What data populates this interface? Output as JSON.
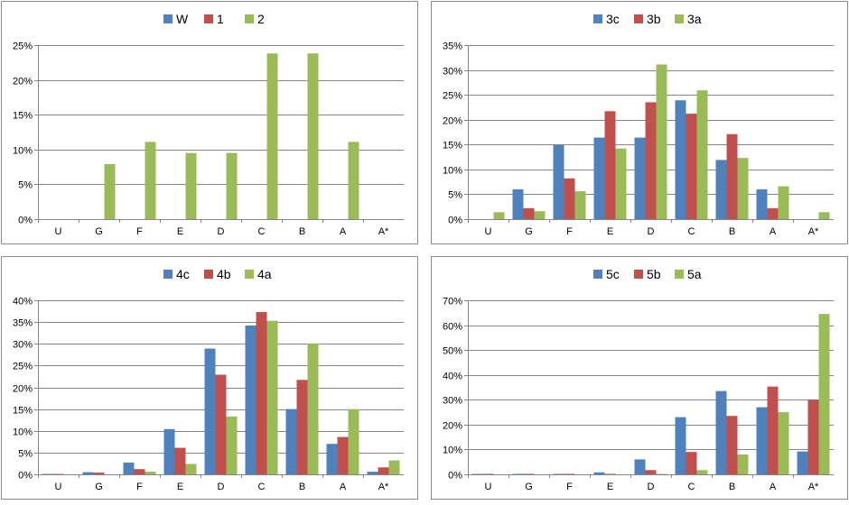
{
  "chart_data": [
    {
      "type": "bar",
      "categories": [
        "U",
        "G",
        "F",
        "E",
        "D",
        "C",
        "B",
        "A",
        "A*"
      ],
      "ylim": [
        0,
        25
      ],
      "yticks": [
        0,
        5,
        10,
        15,
        20,
        25
      ],
      "ytick_labels": [
        "0%",
        "5%",
        "10%",
        "15%",
        "20%",
        "25%"
      ],
      "legend_position": "top",
      "grid": true,
      "series": [
        {
          "name": "W",
          "color": "#4f81bd",
          "values": [
            0,
            0,
            0,
            0,
            0,
            0,
            0,
            0,
            0
          ]
        },
        {
          "name": "1",
          "color": "#c0504d",
          "values": [
            0,
            0,
            0,
            0,
            0,
            0,
            0,
            0,
            0
          ]
        },
        {
          "name": "2",
          "color": "#9bbb59",
          "values": [
            0,
            7.9,
            11.1,
            9.5,
            9.5,
            23.8,
            23.8,
            11.1,
            0
          ]
        }
      ]
    },
    {
      "type": "bar",
      "categories": [
        "U",
        "G",
        "F",
        "E",
        "D",
        "C",
        "B",
        "A",
        "A*"
      ],
      "ylim": [
        0,
        35
      ],
      "yticks": [
        0,
        5,
        10,
        15,
        20,
        25,
        30,
        35
      ],
      "ytick_labels": [
        "0%",
        "5%",
        "10%",
        "15%",
        "20%",
        "25%",
        "30%",
        "35%"
      ],
      "legend_position": "top",
      "grid": true,
      "series": [
        {
          "name": "3c",
          "color": "#4f81bd",
          "values": [
            0,
            6.0,
            14.9,
            16.4,
            16.4,
            23.9,
            11.9,
            6.0,
            0
          ]
        },
        {
          "name": "3b",
          "color": "#c0504d",
          "values": [
            0,
            2.2,
            8.2,
            21.7,
            23.5,
            21.2,
            17.1,
            2.2,
            0
          ]
        },
        {
          "name": "3a",
          "color": "#9bbb59",
          "values": [
            1.4,
            1.6,
            5.6,
            14.2,
            31.1,
            25.9,
            12.3,
            6.6,
            1.4
          ]
        }
      ]
    },
    {
      "type": "bar",
      "categories": [
        "U",
        "G",
        "F",
        "E",
        "D",
        "C",
        "B",
        "A",
        "A*"
      ],
      "ylim": [
        0,
        40
      ],
      "yticks": [
        0,
        5,
        10,
        15,
        20,
        25,
        30,
        35,
        40
      ],
      "ytick_labels": [
        "0%",
        "5%",
        "10%",
        "15%",
        "20%",
        "25%",
        "30%",
        "35%",
        "40%"
      ],
      "legend_position": "top",
      "grid": true,
      "series": [
        {
          "name": "4c",
          "color": "#4f81bd",
          "values": [
            0.1,
            0.5,
            2.7,
            10.4,
            28.9,
            34.2,
            15.0,
            7.0,
            0.6
          ]
        },
        {
          "name": "4b",
          "color": "#c0504d",
          "values": [
            0.1,
            0.4,
            1.2,
            6.1,
            22.9,
            37.3,
            21.7,
            8.6,
            1.6
          ]
        },
        {
          "name": "4a",
          "color": "#9bbb59",
          "values": [
            0,
            0,
            0.6,
            2.4,
            13.3,
            35.3,
            30.1,
            15.0,
            3.2
          ]
        }
      ]
    },
    {
      "type": "bar",
      "categories": [
        "U",
        "G",
        "F",
        "E",
        "D",
        "C",
        "B",
        "A",
        "A*"
      ],
      "ylim": [
        0,
        70
      ],
      "yticks": [
        0,
        10,
        20,
        30,
        40,
        50,
        60,
        70
      ],
      "ytick_labels": [
        "0%",
        "10%",
        "20%",
        "30%",
        "40%",
        "50%",
        "60%",
        "70%"
      ],
      "legend_position": "top",
      "grid": true,
      "series": [
        {
          "name": "5c",
          "color": "#4f81bd",
          "values": [
            0.2,
            0.2,
            0.2,
            0.8,
            6.0,
            23.0,
            33.5,
            27.0,
            9.2
          ]
        },
        {
          "name": "5b",
          "color": "#c0504d",
          "values": [
            0.2,
            0.2,
            0.2,
            0.2,
            1.7,
            9.0,
            23.5,
            35.3,
            30.0
          ]
        },
        {
          "name": "5a",
          "color": "#9bbb59",
          "values": [
            0,
            0,
            0,
            0,
            0.2,
            1.7,
            8.0,
            25.0,
            64.5
          ]
        }
      ]
    }
  ]
}
